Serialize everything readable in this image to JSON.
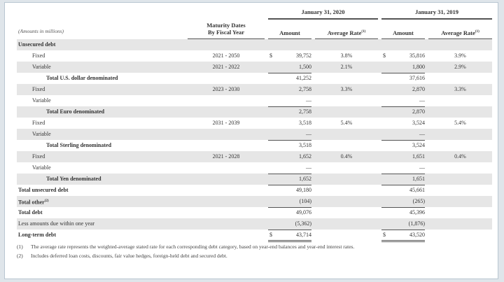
{
  "header": {
    "units_note": "(Amounts in millions)",
    "maturity_header_line1": "Maturity Dates",
    "maturity_header_line2": "By Fiscal Year",
    "period1": "January 31, 2020",
    "period2": "January 31, 2019",
    "amount_label": "Amount",
    "rate_label": "Average Rate",
    "rate_footnote": "(1)"
  },
  "rows": [
    {
      "label": "Unsecured debt",
      "style": "b",
      "maturity": "",
      "a1": "",
      "r1": "",
      "a2": "",
      "r2": ""
    },
    {
      "label": "Fixed",
      "style": "i1",
      "maturity": "2021 - 2050",
      "a1": "39,752",
      "r1": "3.8%",
      "a2": "35,816",
      "r2": "3.9%",
      "dollar": true
    },
    {
      "label": "Variable",
      "style": "i1",
      "maturity": "2021 - 2022",
      "a1": "1,500",
      "r1": "2.1%",
      "a2": "1,800",
      "r2": "2.9%"
    },
    {
      "label": "Total U.S. dollar denominated",
      "style": "i2",
      "maturity": "",
      "a1": "41,252",
      "r1": "",
      "a2": "37,616",
      "r2": "",
      "rule": true
    },
    {
      "label": "Fixed",
      "style": "i1",
      "maturity": "2023 - 2030",
      "a1": "2,758",
      "r1": "3.3%",
      "a2": "2,870",
      "r2": "3.3%"
    },
    {
      "label": "Variable",
      "style": "i1",
      "maturity": "",
      "a1": "—",
      "r1": "",
      "a2": "—",
      "r2": ""
    },
    {
      "label": "Total Euro denominated",
      "style": "i2",
      "maturity": "",
      "a1": "2,758",
      "r1": "",
      "a2": "2,870",
      "r2": "",
      "rule": true
    },
    {
      "label": "Fixed",
      "style": "i1",
      "maturity": "2031 - 2039",
      "a1": "3,518",
      "r1": "5.4%",
      "a2": "3,524",
      "r2": "5.4%"
    },
    {
      "label": "Variable",
      "style": "i1",
      "maturity": "",
      "a1": "—",
      "r1": "",
      "a2": "—",
      "r2": ""
    },
    {
      "label": "Total Sterling denominated",
      "style": "i2",
      "maturity": "",
      "a1": "3,518",
      "r1": "",
      "a2": "3,524",
      "r2": "",
      "rule": true
    },
    {
      "label": "Fixed",
      "style": "i1",
      "maturity": "2021 - 2028",
      "a1": "1,652",
      "r1": "0.4%",
      "a2": "1,651",
      "r2": "0.4%"
    },
    {
      "label": "Variable",
      "style": "i1",
      "maturity": "",
      "a1": "—",
      "r1": "",
      "a2": "—",
      "r2": ""
    },
    {
      "label": "Total Yen denominated",
      "style": "i2",
      "maturity": "",
      "a1": "1,652",
      "r1": "",
      "a2": "1,651",
      "r2": "",
      "rule": true
    },
    {
      "label": "Total unsecured debt",
      "style": "b",
      "maturity": "",
      "a1": "49,180",
      "r1": "",
      "a2": "45,661",
      "r2": "",
      "rule": true
    },
    {
      "label": "Total other",
      "sup": "(2)",
      "style": "b",
      "maturity": "",
      "a1": "(104)",
      "r1": "",
      "a2": "(265)",
      "r2": ""
    },
    {
      "label": "Total debt",
      "style": "b",
      "maturity": "",
      "a1": "49,076",
      "r1": "",
      "a2": "45,396",
      "r2": "",
      "rule": true
    },
    {
      "label": "Less amounts due within one year",
      "style": "",
      "maturity": "",
      "a1": "(5,362)",
      "r1": "",
      "a2": "(1,876)",
      "r2": ""
    },
    {
      "label": "Long-term debt",
      "style": "b",
      "maturity": "",
      "a1": "43,714",
      "r1": "",
      "a2": "43,520",
      "r2": "",
      "rule": true,
      "dollar": true,
      "double": true
    }
  ],
  "dollar_sign": "$",
  "footnotes": [
    {
      "num": "(1)",
      "text": "The average rate represents the weighted-average stated rate for each corresponding debt category, based on year-end balances and year-end interest rates."
    },
    {
      "num": "(2)",
      "text": "Includes deferred loan costs, discounts, fair value hedges, foreign-held debt and secured debt."
    }
  ]
}
